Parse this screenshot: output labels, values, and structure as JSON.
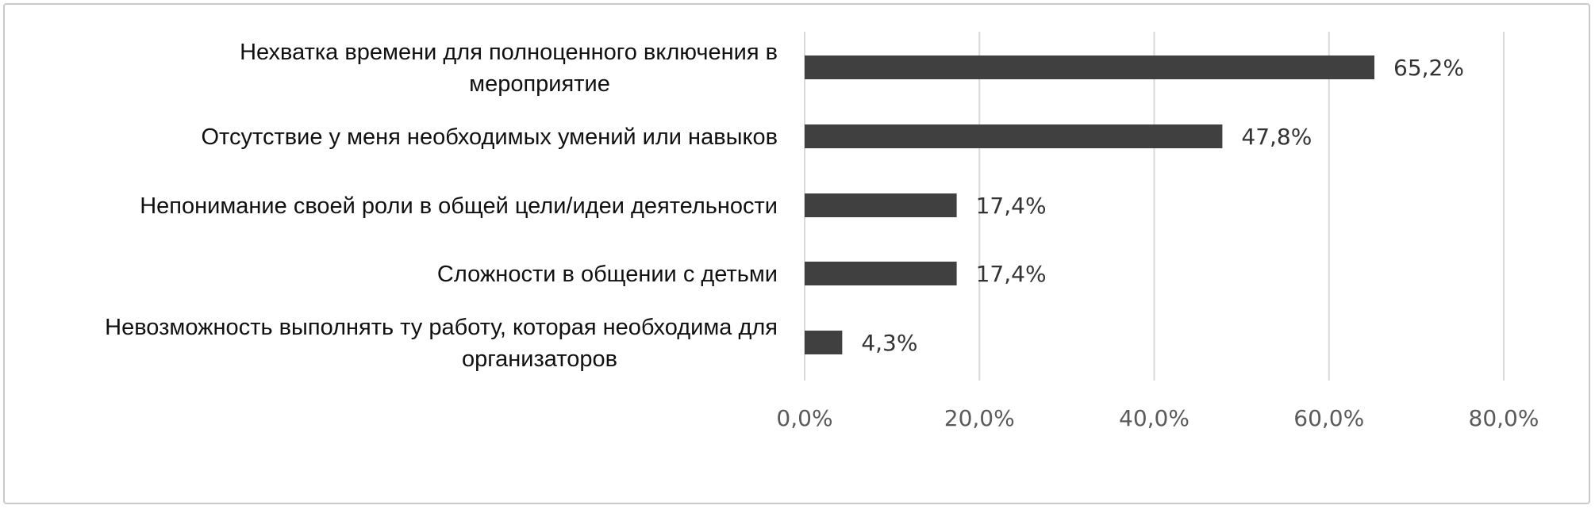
{
  "chart_data": {
    "type": "bar",
    "orientation": "horizontal",
    "title": "",
    "xlabel": "",
    "ylabel": "",
    "categories": [
      [
        "Нехватка времени для полноценного  включения в",
        "мероприятие"
      ],
      [
        "Отсутствие у меня необходимых умений или навыков"
      ],
      [
        "Непонимание своей роли в общей цели/идеи деятельности"
      ],
      [
        "Сложности  в общении с детьми"
      ],
      [
        "Невозможность выполнять ту работу, которая необходима для",
        "организаторов"
      ]
    ],
    "values": [
      65.2,
      47.8,
      17.4,
      17.4,
      4.3
    ],
    "value_labels": [
      "65,2%",
      "47,8%",
      "17,4%",
      "17,4%",
      "4,3%"
    ],
    "xlim": [
      0,
      80
    ],
    "x_ticks": [
      0,
      20,
      40,
      60,
      80
    ],
    "x_tick_labels": [
      "0,0%",
      "20,0%",
      "40,0%",
      "60,0%",
      "80,0%"
    ],
    "grid": "vertical",
    "legend": "none",
    "colors": {
      "bar": "#404040",
      "grid": "#d9d9d9",
      "frame": "#c9c9c9"
    }
  }
}
